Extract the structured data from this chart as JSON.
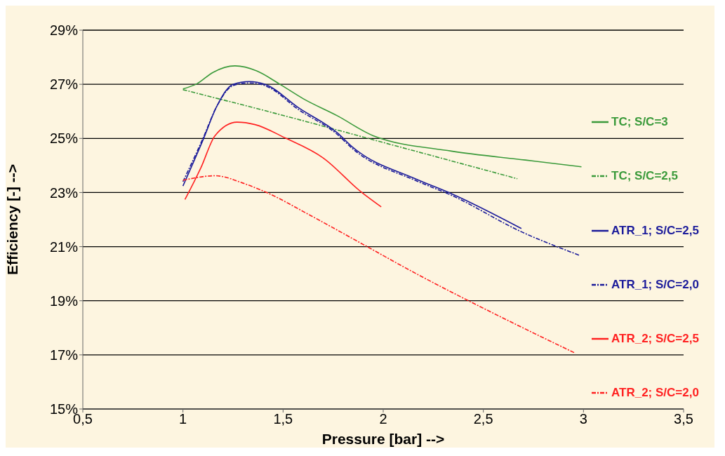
{
  "chart_data": {
    "type": "line",
    "xlabel": "Pressure [bar] -->",
    "ylabel": "Efficiency [-] -->",
    "xlim": [
      0.5,
      3.5
    ],
    "xticks": [
      {
        "value": 0.5,
        "label": "0,5"
      },
      1,
      {
        "value": 1.5,
        "label": "1,5"
      },
      2,
      {
        "value": 2.5,
        "label": "2,5"
      },
      3,
      {
        "value": 3.5,
        "label": "3,5"
      }
    ],
    "ylim": [
      15,
      29
    ],
    "yticks": [
      {
        "value": 15,
        "label": "15%"
      },
      {
        "value": 17,
        "label": "17%"
      },
      {
        "value": 19,
        "label": "19%"
      },
      {
        "value": 21,
        "label": "21%"
      },
      {
        "value": 23,
        "label": "23%"
      },
      {
        "value": 25,
        "label": "25%"
      },
      {
        "value": 27,
        "label": "27%"
      },
      {
        "value": 29,
        "label": "29%"
      }
    ],
    "grid": "y",
    "legend": "right",
    "marker": "none",
    "series": [
      {
        "name": "TC; S/C=3",
        "color": "#3a9a3a",
        "line_style": "solid",
        "x": [
          1.0,
          1.07,
          1.15,
          1.26,
          1.37,
          1.48,
          1.6,
          1.77,
          1.95,
          2.34,
          2.71,
          2.99
        ],
        "values": [
          26.83,
          27.02,
          27.44,
          27.68,
          27.49,
          27.02,
          26.47,
          25.84,
          25.1,
          24.53,
          24.2,
          23.95
        ]
      },
      {
        "name": "TC; S/C=2,5",
        "color": "#3a9a3a",
        "line_style": "dashed",
        "x": [
          1.0,
          1.5,
          2.0,
          2.67
        ],
        "values": [
          26.8,
          25.85,
          24.85,
          23.51
        ]
      },
      {
        "name": "ATR_1; S/C=2,5",
        "color": "#1a1a9a",
        "line_style": "solid",
        "x": [
          1.0,
          1.1,
          1.17,
          1.25,
          1.33,
          1.41,
          1.58,
          1.77,
          1.85,
          2.16,
          2.34,
          2.69
        ],
        "values": [
          23.24,
          24.94,
          26.2,
          27.0,
          27.1,
          27.0,
          26.12,
          25.21,
          24.66,
          23.51,
          22.96,
          21.67
        ]
      },
      {
        "name": "ATR_1; S/C=2,0",
        "color": "#1a1a9a",
        "line_style": "dashed",
        "x": [
          1.0,
          1.1,
          1.17,
          1.25,
          1.33,
          1.41,
          1.58,
          1.77,
          1.85,
          2.16,
          2.34,
          2.69,
          2.98
        ],
        "values": [
          23.4,
          25.0,
          26.2,
          26.95,
          27.05,
          26.95,
          26.05,
          25.15,
          24.6,
          23.45,
          22.9,
          21.55,
          20.68
        ]
      },
      {
        "name": "ATR_2; S/C=2,5",
        "color": "#ff2020",
        "line_style": "solid",
        "x": [
          1.01,
          1.09,
          1.16,
          1.27,
          1.36,
          1.51,
          1.7,
          1.89,
          1.99
        ],
        "values": [
          22.74,
          23.92,
          25.1,
          25.6,
          25.51,
          25.02,
          24.28,
          23.02,
          22.47
        ]
      },
      {
        "name": "ATR_2; S/C=2,0",
        "color": "#ff2020",
        "line_style": "dashed",
        "x": [
          1.0,
          1.16,
          1.31,
          1.43,
          1.62,
          1.91,
          2.16,
          2.41,
          2.67,
          2.96
        ],
        "values": [
          23.45,
          23.62,
          23.32,
          22.96,
          22.22,
          21.04,
          20.02,
          19.06,
          18.1,
          17.06
        ]
      }
    ]
  }
}
